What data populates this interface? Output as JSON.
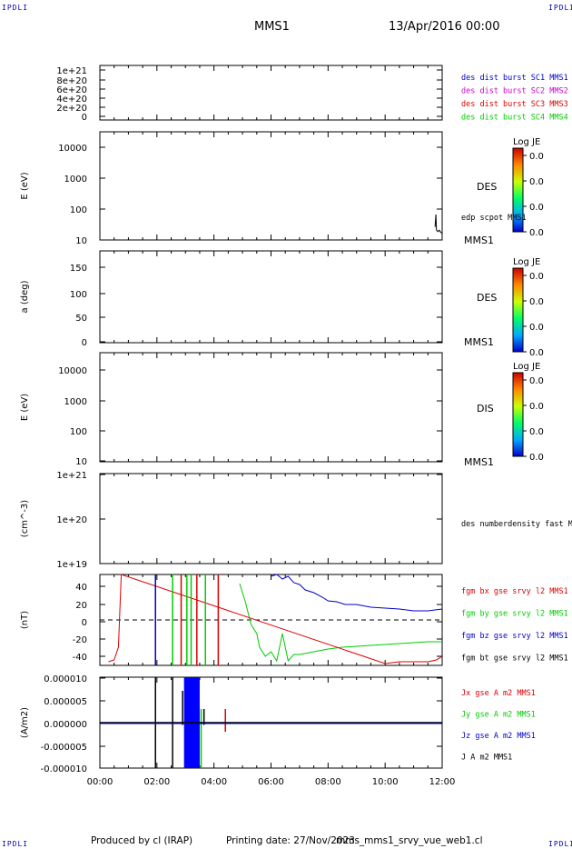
{
  "header": {
    "corner_tl": "IPDLI",
    "corner_tr": "IPDLI",
    "corner_bl": "IPDLI",
    "corner_br": "IPDLI",
    "title": "MMS1",
    "date": "13/Apr/2016 00:00"
  },
  "footer": {
    "produced": "Produced by cl (IRAP)",
    "printed": "Printing date: 27/Nov/2023",
    "file": "mms_mms1_srvy_vue_web1.cl"
  },
  "time_axis": {
    "ticks": [
      "00:00",
      "02:00",
      "04:00",
      "06:00",
      "08:00",
      "10:00",
      "12:00"
    ],
    "range_hours": [
      0,
      12
    ]
  },
  "colors": {
    "blue": "#0000cc",
    "magenta": "#cc00cc",
    "red": "#dd0000",
    "green": "#00cc00",
    "black": "#000000"
  },
  "chart_data": [
    {
      "type": "line",
      "panel": "dist",
      "ylabel": "",
      "ylim": [
        0,
        1e+21
      ],
      "yticks": [
        "1e+21",
        "8e+20",
        "6e+20",
        "4e+20",
        "2e+20",
        "0"
      ],
      "legend": [
        {
          "text": "des dist burst SC1 MMS1",
          "color": "#0000cc"
        },
        {
          "text": "des dist burst SC2 MMS2",
          "color": "#cc00cc"
        },
        {
          "text": "des dist burst SC3 MMS3",
          "color": "#dd0000"
        },
        {
          "text": "des dist burst SC4 MMS4",
          "color": "#00cc00"
        }
      ],
      "zero_line": true
    },
    {
      "type": "heatmap",
      "panel": "des_energy",
      "ylabel": "E (eV)",
      "scale": "log",
      "ylim": [
        10,
        20000
      ],
      "yticks": [
        "10000",
        "1000",
        "100",
        "10"
      ],
      "species": "DES",
      "below_label": "MMS1",
      "overlay_label": "edp scpot MMS1",
      "overlay_series": {
        "x": [
          11.75,
          11.78,
          11.8,
          11.85,
          11.9,
          11.95,
          12.0
        ],
        "y": [
          25,
          60,
          20,
          18,
          20,
          17,
          16
        ]
      },
      "colorbar": {
        "title": "Log JE",
        "ticks": [
          "0.0",
          "0.0",
          "0.0",
          "0.0"
        ]
      }
    },
    {
      "type": "heatmap",
      "panel": "des_pitch",
      "ylabel": "a (deg)",
      "ylim": [
        0,
        180
      ],
      "yticks": [
        "150",
        "100",
        "50",
        "0"
      ],
      "species": "DES",
      "below_label": "MMS1",
      "colorbar": {
        "title": "Log JE",
        "ticks": [
          "0.0",
          "0.0",
          "0.0",
          "0.0"
        ]
      }
    },
    {
      "type": "heatmap",
      "panel": "dis_energy",
      "ylabel": "E (eV)",
      "scale": "log",
      "ylim": [
        10,
        20000
      ],
      "yticks": [
        "10000",
        "1000",
        "100",
        "10"
      ],
      "species": "DIS",
      "below_label": "MMS1",
      "colorbar": {
        "title": "Log JE",
        "ticks": [
          "0.0",
          "0.0",
          "0.0",
          "0.0"
        ]
      }
    },
    {
      "type": "line",
      "panel": "density",
      "ylabel": "(cm^-3)",
      "scale": "log",
      "ylim": [
        1e+19,
        1e+21
      ],
      "yticks": [
        "1e+21",
        "1e+20",
        "1e+19"
      ],
      "legend": [
        {
          "text": "des numberdensity fast M",
          "color": "#000000"
        }
      ]
    },
    {
      "type": "line",
      "panel": "fgm",
      "ylabel": "(nT)",
      "ylim": [
        -50,
        50
      ],
      "yticks": [
        "40",
        "20",
        "0",
        "-20",
        "-40"
      ],
      "zero_line": true,
      "legend": [
        {
          "text": "fgm bx gse srvy l2 MMS1",
          "color": "#dd0000"
        },
        {
          "text": "fgm by gse srvy l2 MMS1",
          "color": "#00cc00"
        },
        {
          "text": "fgm bz gse srvy l2 MMS1",
          "color": "#0000cc"
        },
        {
          "text": "fgm bt gse srvy l2 MMS1",
          "color": "#000000"
        }
      ],
      "series": [
        {
          "name": "fgm bz gse srvy l2 MMS1",
          "color": "#0000cc",
          "x": [
            6.0,
            6.2,
            6.4,
            6.6,
            6.8,
            7.0,
            7.2,
            7.5,
            7.8,
            8.0,
            8.3,
            8.6,
            9.0,
            9.5,
            10.0,
            10.5,
            11.0,
            11.5,
            12.0
          ],
          "y": [
            48,
            50,
            45,
            48,
            41,
            39,
            33,
            30,
            25,
            21,
            20,
            17,
            17,
            14,
            13,
            12,
            10,
            10,
            12
          ]
        },
        {
          "name": "fgm by gse srvy l2 MMS1",
          "color": "#00cc00",
          "x": [
            4.9,
            5.1,
            5.3,
            5.5,
            5.6,
            5.8,
            6.0,
            6.2,
            6.4,
            6.6,
            6.8,
            7.0,
            7.5,
            8.0,
            8.5,
            9.0,
            9.5,
            10.0,
            10.5,
            11.0,
            11.5,
            12.0
          ],
          "y": [
            40,
            20,
            -5,
            -15,
            -30,
            -40,
            -35,
            -45,
            -15,
            -45,
            -38,
            -38,
            -35,
            -32,
            -30,
            -29,
            -28,
            -27,
            -26,
            -25,
            -24,
            -24
          ]
        },
        {
          "name": "fgm bx gse srvy l2 MMS1",
          "color": "#dd0000",
          "x": [
            0.3,
            0.5,
            0.65,
            0.75,
            10.0,
            10.5,
            11.0,
            11.5,
            11.8,
            12.0
          ],
          "y": [
            -46,
            -44,
            -30,
            50,
            -48,
            -46,
            -46,
            -46,
            -44,
            -40
          ]
        }
      ],
      "spikes": [
        {
          "x": 1.95,
          "color": "#0000cc"
        },
        {
          "x": 2.55,
          "color": "#00cc00"
        },
        {
          "x": 2.85,
          "color": "#dd0000"
        },
        {
          "x": 3.05,
          "color": "#00cc00"
        },
        {
          "x": 3.2,
          "color": "#00cc00"
        },
        {
          "x": 3.4,
          "color": "#dd0000"
        },
        {
          "x": 3.7,
          "color": "#00cc00"
        },
        {
          "x": 4.15,
          "color": "#dd0000"
        }
      ]
    },
    {
      "type": "line",
      "panel": "current",
      "ylabel": "(A/m2)",
      "ylim": [
        -1e-05,
        1e-05
      ],
      "yticks": [
        "0.000010",
        "0.000005",
        "0.000000",
        "-0.000005",
        "-0.000010"
      ],
      "legend": [
        {
          "text": "Jx gse A m2 MMS1",
          "color": "#dd0000"
        },
        {
          "text": "Jy gse A m2 MMS1",
          "color": "#00cc00"
        },
        {
          "text": "Jz gse A m2 MMS1",
          "color": "#0000cc"
        },
        {
          "text": "J A m2 MMS1",
          "color": "#000000"
        }
      ],
      "band": {
        "x0": 2.95,
        "x1": 3.5,
        "color": "#0000ff"
      },
      "spikes": [
        {
          "x": 1.95,
          "y0": -1e-05,
          "y1": 1e-05,
          "color": "#000000"
        },
        {
          "x": 2.55,
          "y0": -1e-05,
          "y1": 1e-05,
          "color": "#000000"
        },
        {
          "x": 2.9,
          "y0": -5e-07,
          "y1": 7e-06,
          "color": "#000000"
        },
        {
          "x": 3.55,
          "y0": -1e-05,
          "y1": 3e-06,
          "color": "#00cc00"
        },
        {
          "x": 3.65,
          "y0": -5e-07,
          "y1": 3e-06,
          "color": "#000000"
        },
        {
          "x": 4.4,
          "y0": -2e-06,
          "y1": 3e-06,
          "color": "#dd0000"
        }
      ]
    }
  ]
}
